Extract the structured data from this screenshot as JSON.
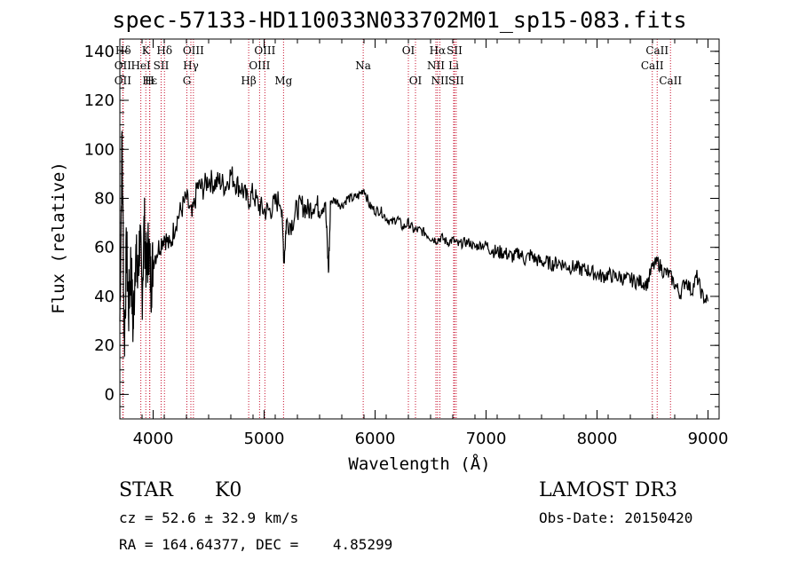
{
  "chart_data": {
    "type": "line",
    "title": "spec-57133-HD110033N033702M01_sp15-083.fits",
    "xlabel": "Wavelength (Å)",
    "ylabel": "Flux (relative)",
    "xlim": [
      3700,
      9100
    ],
    "ylim": [
      -10,
      145
    ],
    "x_ticks": [
      4000,
      5000,
      6000,
      7000,
      8000,
      9000
    ],
    "y_ticks": [
      0,
      20,
      40,
      60,
      80,
      100,
      120,
      140
    ],
    "series": [
      {
        "name": "flux",
        "x": [
          3700,
          3720,
          3740,
          3760,
          3780,
          3800,
          3820,
          3840,
          3860,
          3880,
          3900,
          3920,
          3940,
          3960,
          3980,
          4000,
          4050,
          4100,
          4150,
          4200,
          4250,
          4300,
          4350,
          4400,
          4450,
          4500,
          4550,
          4600,
          4650,
          4700,
          4750,
          4800,
          4850,
          4900,
          4950,
          5000,
          5050,
          5100,
          5150,
          5180,
          5200,
          5250,
          5300,
          5350,
          5400,
          5450,
          5500,
          5550,
          5580,
          5600,
          5650,
          5700,
          5750,
          5800,
          5850,
          5900,
          5950,
          6000,
          6050,
          6100,
          6150,
          6200,
          6250,
          6300,
          6350,
          6400,
          6450,
          6500,
          6550,
          6600,
          6650,
          6700,
          6750,
          6800,
          6850,
          6900,
          6950,
          7000,
          7050,
          7100,
          7150,
          7200,
          7250,
          7300,
          7350,
          7400,
          7450,
          7500,
          7550,
          7600,
          7650,
          7700,
          7750,
          7800,
          7850,
          7900,
          7950,
          8000,
          8050,
          8100,
          8150,
          8200,
          8250,
          8300,
          8350,
          8400,
          8450,
          8500,
          8550,
          8600,
          8650,
          8700,
          8750,
          8800,
          8850,
          8900,
          8950,
          9000
        ],
        "y": [
          30,
          105,
          20,
          60,
          35,
          55,
          25,
          60,
          45,
          65,
          40,
          70,
          50,
          62,
          45,
          55,
          60,
          65,
          60,
          70,
          75,
          80,
          72,
          85,
          84,
          88,
          86,
          87,
          85,
          90,
          86,
          84,
          79,
          82,
          77,
          75,
          75,
          78,
          80,
          55,
          70,
          70,
          76,
          77,
          75,
          78,
          76,
          79,
          50,
          79,
          79,
          77,
          80,
          80,
          81,
          84,
          77,
          75,
          75,
          72,
          70,
          72,
          68,
          70,
          67,
          67,
          66,
          64,
          63,
          64,
          62,
          63,
          61,
          62,
          62,
          60,
          61,
          61,
          59,
          58,
          58,
          57,
          56,
          58,
          55,
          57,
          55,
          54,
          54,
          53,
          54,
          53,
          52,
          52,
          51,
          51,
          50,
          49,
          48,
          49,
          48,
          48,
          47,
          47,
          46,
          46,
          45,
          52,
          54,
          50,
          49,
          45,
          41,
          47,
          42,
          48,
          40,
          38
        ]
      }
    ],
    "line_markers": [
      {
        "label": "Hδ",
        "x": 3730
      },
      {
        "label": "OII",
        "x": 3727
      },
      {
        "label": "OII",
        "x": 3727
      },
      {
        "label": "K",
        "x": 3934
      },
      {
        "label": "HeI",
        "x": 3889
      },
      {
        "label": "Hε",
        "x": 3970
      },
      {
        "label": "H",
        "x": 3968
      },
      {
        "label": "Hδ",
        "x": 4102
      },
      {
        "label": "SII",
        "x": 4072
      },
      {
        "label": "OIII",
        "x": 4363
      },
      {
        "label": "Hγ",
        "x": 4340
      },
      {
        "label": "G",
        "x": 4304
      },
      {
        "label": "OIII",
        "x": 5007
      },
      {
        "label": "OIII",
        "x": 4959
      },
      {
        "label": "Hβ",
        "x": 4861
      },
      {
        "label": "Mg",
        "x": 5175
      },
      {
        "label": "Na",
        "x": 5893
      },
      {
        "label": "OI",
        "x": 6300
      },
      {
        "label": "OI",
        "x": 6364
      },
      {
        "label": "Hα",
        "x": 6563
      },
      {
        "label": "SII",
        "x": 6716
      },
      {
        "label": "NII",
        "x": 6548
      },
      {
        "label": "Li",
        "x": 6708
      },
      {
        "label": "NII",
        "x": 6584
      },
      {
        "label": "SII",
        "x": 6731
      },
      {
        "label": "CaII",
        "x": 8542
      },
      {
        "label": "CaII",
        "x": 8498
      },
      {
        "label": "CaII",
        "x": 8662
      }
    ],
    "legend": "none",
    "grid": false
  },
  "info": {
    "class": "STAR",
    "subclass": "K0",
    "survey": "LAMOST DR3",
    "cz": "cz = 52.6 ± 32.9 km/s",
    "obs_date": "Obs-Date: 20150420",
    "coords": "RA = 164.64377, DEC =    4.85299"
  },
  "colors": {
    "line": "#000000",
    "marker": "#c8102e",
    "background": "#ffffff"
  }
}
